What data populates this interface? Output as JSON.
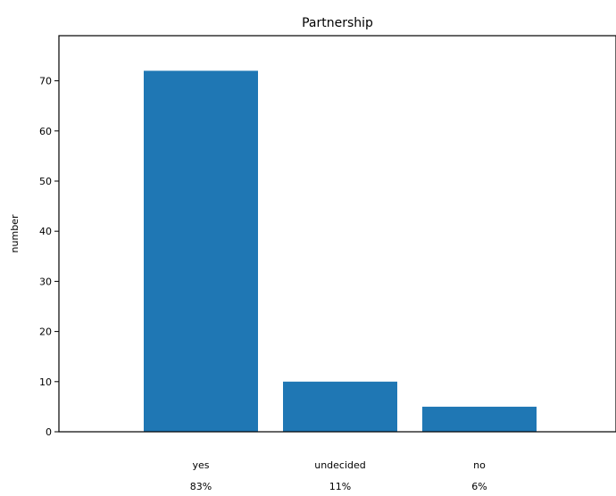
{
  "chart_data": {
    "type": "bar",
    "title": "Partnership",
    "xlabel": "",
    "ylabel": "number",
    "categories": [
      "yes",
      "undecided",
      "no"
    ],
    "category_percent_labels": [
      "83%",
      "11%",
      "6%"
    ],
    "values": [
      72,
      10,
      5
    ],
    "ylim": [
      0,
      79
    ],
    "yticks": [
      0,
      10,
      20,
      30,
      40,
      50,
      60,
      70
    ],
    "bar_color": "#1f77b4",
    "grid": false
  }
}
